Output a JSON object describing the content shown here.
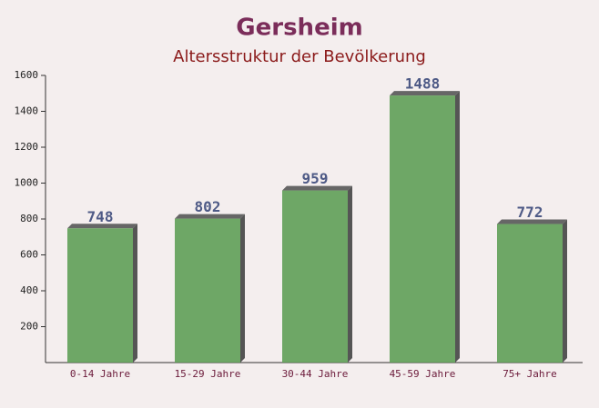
{
  "chart_data": {
    "type": "bar",
    "title": "Gersheim",
    "subtitle": "Altersstruktur der Bevölkerung",
    "categories": [
      "0-14 Jahre",
      "15-29 Jahre",
      "30-44 Jahre",
      "45-59 Jahre",
      "75+ Jahre"
    ],
    "values": [
      748,
      802,
      959,
      1488,
      772
    ],
    "color": "#5f9e56",
    "ylim": [
      0,
      1600
    ],
    "yticks": [
      200,
      400,
      600,
      800,
      1000,
      1200,
      1400,
      1600
    ]
  }
}
